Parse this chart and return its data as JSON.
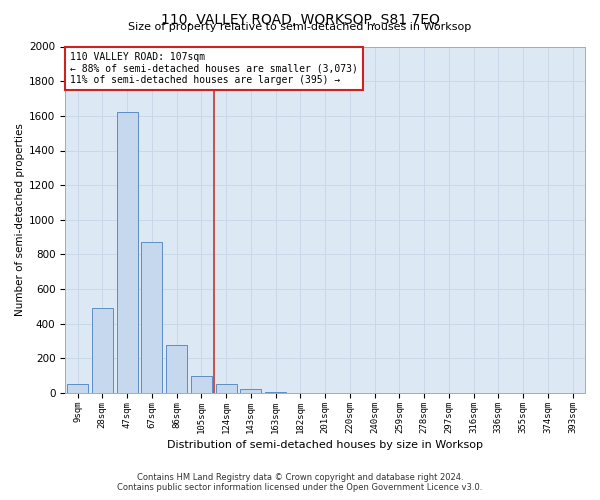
{
  "title": "110, VALLEY ROAD, WORKSOP, S81 7EQ",
  "subtitle": "Size of property relative to semi-detached houses in Worksop",
  "xlabel": "Distribution of semi-detached houses by size in Worksop",
  "ylabel": "Number of semi-detached properties",
  "footer_line1": "Contains HM Land Registry data © Crown copyright and database right 2024.",
  "footer_line2": "Contains public sector information licensed under the Open Government Licence v3.0.",
  "annotation_title": "110 VALLEY ROAD: 107sqm",
  "annotation_line1": "← 88% of semi-detached houses are smaller (3,073)",
  "annotation_line2": "11% of semi-detached houses are larger (395) →",
  "bar_categories": [
    "9sqm",
    "28sqm",
    "47sqm",
    "67sqm",
    "86sqm",
    "105sqm",
    "124sqm",
    "143sqm",
    "163sqm",
    "182sqm",
    "201sqm",
    "220sqm",
    "240sqm",
    "259sqm",
    "278sqm",
    "297sqm",
    "316sqm",
    "336sqm",
    "355sqm",
    "374sqm",
    "393sqm"
  ],
  "bar_values": [
    50,
    490,
    1620,
    870,
    280,
    100,
    55,
    25,
    5,
    0,
    0,
    0,
    0,
    0,
    0,
    0,
    0,
    0,
    0,
    0,
    0
  ],
  "bar_color": "#c5d8ed",
  "bar_edge_color": "#5b8ec4",
  "vline_color": "#c0392b",
  "grid_color": "#c8d8e8",
  "background_color": "#dce9f5",
  "fig_background": "#ffffff",
  "ylim": [
    0,
    2000
  ],
  "yticks": [
    0,
    200,
    400,
    600,
    800,
    1000,
    1200,
    1400,
    1600,
    1800,
    2000
  ],
  "vline_x_index": 5.5
}
